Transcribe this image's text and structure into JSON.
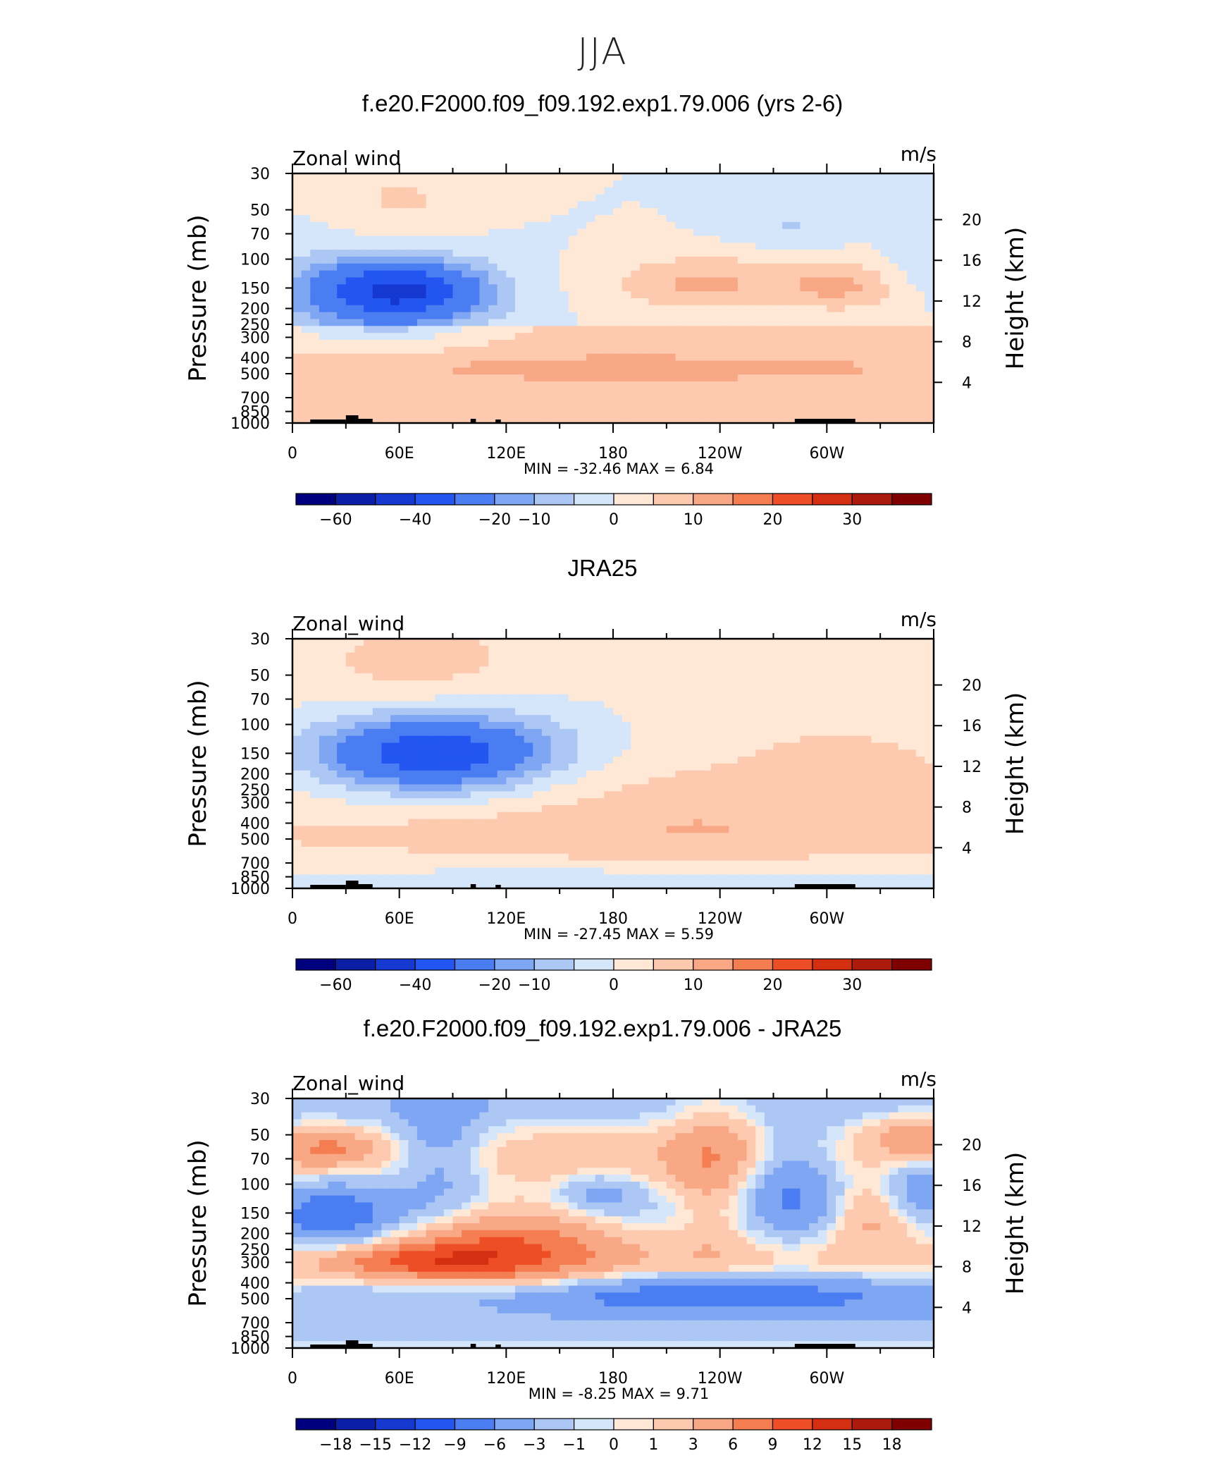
{
  "figure": {
    "season": "JJA"
  },
  "panels": [
    {
      "title": "f.e20.F2000.f09_f09.192.exp1.79.006 (yrs 2-6)",
      "left_label": "Zonal wind",
      "units": "m/s",
      "stats": {
        "min_label": "MIN",
        "min": "-32.46",
        "max_label": "MAX",
        "max": "6.84"
      }
    },
    {
      "title": "JRA25",
      "left_label": "Zonal_wind",
      "units": "m/s",
      "stats": {
        "min_label": "MIN",
        "min": "-27.45",
        "max_label": "MAX",
        "max": "5.59"
      }
    },
    {
      "title": "f.e20.F2000.f09_f09.192.exp1.79.006 - JRA25",
      "left_label": "Zonal_wind",
      "units": "m/s",
      "stats": {
        "min_label": "MIN",
        "min": "-8.25",
        "max_label": "MAX",
        "max": "9.71"
      }
    }
  ],
  "chart_data": [
    {
      "type": "heatmap",
      "variable": "Zonal wind",
      "xlabel": "",
      "ylabel": "Pressure (mb)",
      "y2label": "Height (km)",
      "x_ticks": [
        "0",
        "60E",
        "120E",
        "180",
        "120W",
        "60W"
      ],
      "y_ticks": [
        30,
        50,
        70,
        100,
        150,
        200,
        250,
        300,
        400,
        500,
        700,
        850,
        1000
      ],
      "y2_ticks": [
        20,
        16,
        12,
        8,
        4
      ],
      "ylim": [
        1000,
        30
      ],
      "y_scale": "log",
      "colorbar_labels": [
        "-60",
        "-40",
        "-20",
        "-10",
        "0",
        "10",
        "20",
        "30"
      ],
      "colors": [
        "#00007f",
        "#0a1ea6",
        "#1538d0",
        "#2356f0",
        "#4a7df2",
        "#7ea6f3",
        "#adc7f5",
        "#d6e6fa",
        "#ffe8d5",
        "#fdcab0",
        "#f9a886",
        "#f47d52",
        "#ee4e25",
        "#d52f12",
        "#ac1a0d",
        "#7e0000"
      ],
      "min": -32.46,
      "max": 6.84,
      "features": [
        {
          "description": "westerly/easterly minimum near 70E at 150 mb",
          "x_lon": 70,
          "y_mb": 150,
          "value": -32
        },
        {
          "description": "positive maxima near 110W and 60W around 150 mb",
          "x_lon": [
            250,
            300
          ],
          "y_mb": 150,
          "value": 6
        }
      ]
    },
    {
      "type": "heatmap",
      "variable": "Zonal_wind",
      "ylabel": "Pressure (mb)",
      "y2label": "Height (km)",
      "x_ticks": [
        "0",
        "60E",
        "120E",
        "180",
        "120W",
        "60W"
      ],
      "y_ticks": [
        30,
        50,
        70,
        100,
        150,
        200,
        250,
        300,
        400,
        500,
        700,
        850,
        1000
      ],
      "y2_ticks": [
        20,
        16,
        12,
        8,
        4
      ],
      "ylim": [
        1000,
        30
      ],
      "y_scale": "log",
      "colorbar_labels": [
        "-60",
        "-40",
        "-20",
        "-10",
        "0",
        "10",
        "20",
        "30"
      ],
      "colors": [
        "#00007f",
        "#0a1ea6",
        "#1538d0",
        "#2356f0",
        "#4a7df2",
        "#7ea6f3",
        "#adc7f5",
        "#d6e6fa",
        "#ffe8d5",
        "#fdcab0",
        "#f9a886",
        "#f47d52",
        "#ee4e25",
        "#d52f12",
        "#ac1a0d",
        "#7e0000"
      ],
      "min": -27.45,
      "max": 5.59
    },
    {
      "type": "heatmap",
      "variable": "Zonal_wind",
      "ylabel": "Pressure (mb)",
      "y2label": "Height (km)",
      "x_ticks": [
        "0",
        "60E",
        "120E",
        "180",
        "120W",
        "60W"
      ],
      "y_ticks": [
        30,
        50,
        70,
        100,
        150,
        200,
        250,
        300,
        400,
        500,
        700,
        850,
        1000
      ],
      "y2_ticks": [
        20,
        16,
        12,
        8,
        4
      ],
      "ylim": [
        1000,
        30
      ],
      "y_scale": "log",
      "colorbar_labels": [
        "-18",
        "-15",
        "-12",
        "-9",
        "-6",
        "-3",
        "-1",
        "0",
        "1",
        "3",
        "6",
        "9",
        "12",
        "15",
        "18"
      ],
      "colors": [
        "#00007f",
        "#0a1ea6",
        "#1538d0",
        "#2356f0",
        "#4a7df2",
        "#7ea6f3",
        "#adc7f5",
        "#d6e6fa",
        "#ffe8d5",
        "#fdcab0",
        "#f9a886",
        "#f47d52",
        "#ee4e25",
        "#d52f12",
        "#ac1a0d",
        "#7e0000"
      ],
      "min": -8.25,
      "max": 9.71
    }
  ]
}
